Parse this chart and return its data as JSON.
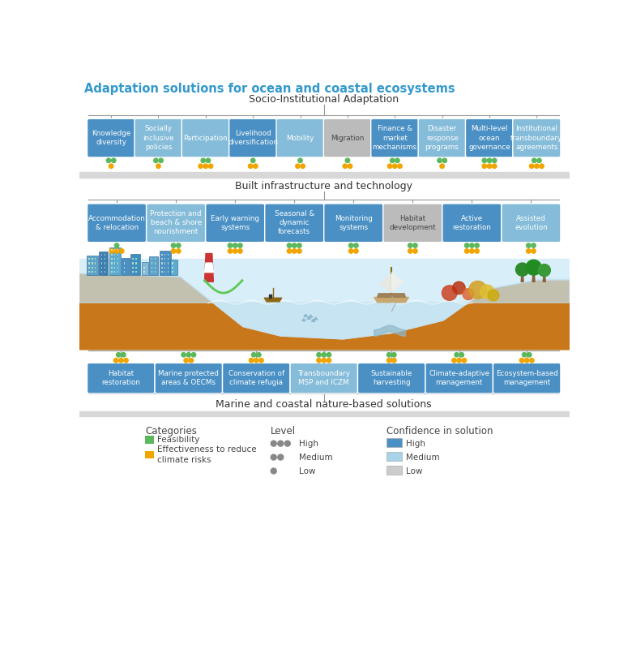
{
  "title": "Adaptation solutions for ocean and coastal ecosystems",
  "title_color": "#3399CC",
  "bg_color": "#ffffff",
  "section1_label": "Socio-Institutional Adaptation",
  "section1_boxes": [
    {
      "label": "Knowledge\ndiversity",
      "color": "#4A90C4",
      "border": "solid",
      "green_dots": 2,
      "orange_dots": 1
    },
    {
      "label": "Socially\ninclusive\npolicies",
      "color": "#85BCD9",
      "border": "solid",
      "green_dots": 2,
      "orange_dots": 1
    },
    {
      "label": "Participation",
      "color": "#85BCD9",
      "border": "solid",
      "green_dots": 2,
      "orange_dots": 3
    },
    {
      "label": "Livelihood\ndiversification",
      "color": "#4A90C4",
      "border": "solid",
      "green_dots": 1,
      "orange_dots": 2
    },
    {
      "label": "Mobility",
      "color": "#85BCD9",
      "border": "solid",
      "green_dots": 1,
      "orange_dots": 2
    },
    {
      "label": "Migration",
      "color": "#BBBBBB",
      "border": "solid",
      "green_dots": 1,
      "orange_dots": 2
    },
    {
      "label": "Finance &\nmarket\nmechanisms",
      "color": "#4A90C4",
      "border": "solid",
      "green_dots": 2,
      "orange_dots": 3
    },
    {
      "label": "Disaster\nresponse\nprograms",
      "color": "#85BCD9",
      "border": "solid",
      "green_dots": 2,
      "orange_dots": 1
    },
    {
      "label": "Multi-level\nocean\ngovernance",
      "color": "#4A90C4",
      "border": "solid",
      "green_dots": 3,
      "orange_dots": 3
    },
    {
      "label": "Institutional\ntransboundary\nagreements",
      "color": "#85BCD9",
      "border": "solid",
      "green_dots": 2,
      "orange_dots": 3
    }
  ],
  "section2_label": "Built infrastructure and technology",
  "section2_boxes": [
    {
      "label": "Accommodation\n& relocation",
      "color": "#4A90C4",
      "border": "solid",
      "green_dots": 1,
      "orange_dots": 3
    },
    {
      "label": "Protection and\nbeach & shore\nnourishment",
      "color": "#85BCD9",
      "border": "solid",
      "green_dots": 2,
      "orange_dots": 2
    },
    {
      "label": "Early warning\nsystems",
      "color": "#4A90C4",
      "border": "solid",
      "green_dots": 3,
      "orange_dots": 3
    },
    {
      "label": "Seasonal &\ndynamic\nforecasts",
      "color": "#4A90C4",
      "border": "solid",
      "green_dots": 3,
      "orange_dots": 3
    },
    {
      "label": "Monitoring\nsystems",
      "color": "#4A90C4",
      "border": "solid",
      "green_dots": 2,
      "orange_dots": 2
    },
    {
      "label": "Habitat\ndevelopment",
      "color": "#BBBBBB",
      "border": "solid",
      "green_dots": 2,
      "orange_dots": 2
    },
    {
      "label": "Active\nrestoration",
      "color": "#4A90C4",
      "border": "solid",
      "green_dots": 3,
      "orange_dots": 3
    },
    {
      "label": "Assisted\nevolution",
      "color": "#85BCD9",
      "border": "solid",
      "green_dots": 2,
      "orange_dots": 2
    }
  ],
  "section3_label": "Marine and coastal nature-based solutions",
  "section3_boxes": [
    {
      "label": "Habitat\nrestoration",
      "color": "#4A90C4",
      "border": "solid",
      "green_dots": 2,
      "orange_dots": 3
    },
    {
      "label": "Marine protected\nareas & OECMs",
      "color": "#4A90C4",
      "border": "solid",
      "green_dots": 3,
      "orange_dots": 2
    },
    {
      "label": "Conservation of\nclimate refugia",
      "color": "#4A90C4",
      "border": "solid",
      "green_dots": 2,
      "orange_dots": 3
    },
    {
      "label": "Transboundary\nMSP and ICZM",
      "color": "#85BCD9",
      "border": "solid",
      "green_dots": 3,
      "orange_dots": 3
    },
    {
      "label": "Sustainable\nharvesting",
      "color": "#4A90C4",
      "border": "solid",
      "green_dots": 2,
      "orange_dots": 2
    },
    {
      "label": "Climate-adaptive\nmanagement",
      "color": "#4A90C4",
      "border": "solid",
      "green_dots": 2,
      "orange_dots": 3
    },
    {
      "label": "Ecosystem-based\nmanagement",
      "color": "#4A90C4",
      "border": "solid",
      "green_dots": 2,
      "orange_dots": 3
    }
  ],
  "green_color": "#5CB85C",
  "orange_color": "#F0A500",
  "dot_gray": "#888888",
  "legend_categories_title": "Categories",
  "legend_feasibility": "Feasibility",
  "legend_effectiveness": "Effectiveness to reduce\nclimate risks",
  "legend_level_title": "Level",
  "legend_high": "High",
  "legend_medium": "Medium",
  "legend_low": "Low",
  "legend_confidence_title": "Confidence in solution",
  "legend_conf_high": "High",
  "legend_conf_medium": "Medium",
  "legend_conf_low": "Low",
  "color_conf_high": "#4A90C4",
  "color_conf_medium": "#A8D4EA",
  "color_conf_low": "#CCCCCC"
}
